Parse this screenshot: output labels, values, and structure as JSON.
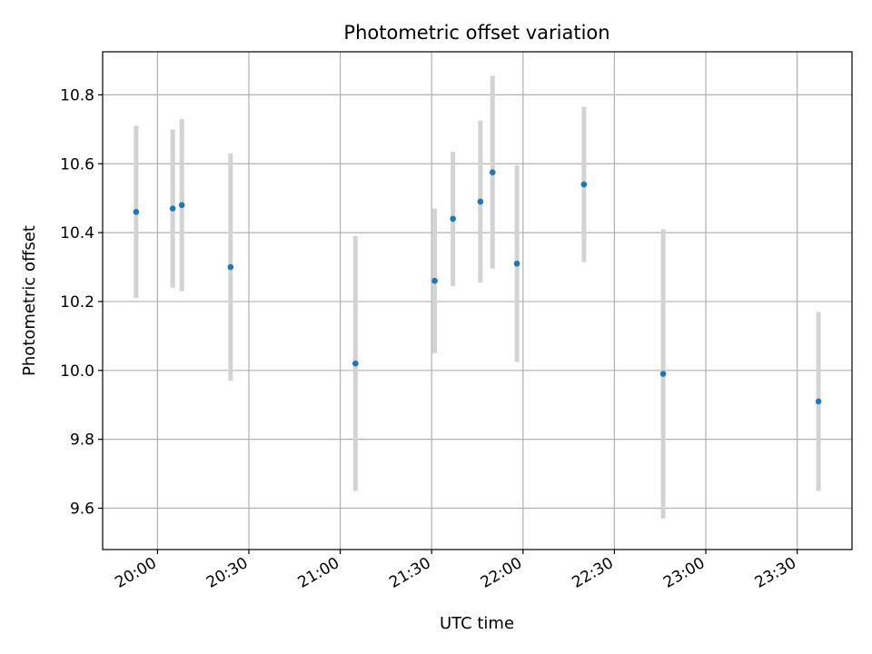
{
  "chart_data": {
    "type": "scatter",
    "title": "Photometric offset variation",
    "xlabel": "UTC time",
    "ylabel": "Photometric offset",
    "x_axis": {
      "type": "time",
      "range": [
        "19:42",
        "23:48"
      ],
      "ticks": [
        "20:00",
        "20:30",
        "21:00",
        "21:30",
        "22:00",
        "22:30",
        "23:00",
        "23:30"
      ]
    },
    "ylim": [
      9.48,
      10.925
    ],
    "y_ticks": [
      "9.6",
      "9.8",
      "10.0",
      "10.2",
      "10.4",
      "10.6",
      "10.8"
    ],
    "grid": true,
    "colors": {
      "marker": "#1f77b4",
      "errorbar": "#d3d3d3",
      "grid": "#b0b0b0"
    },
    "series": [
      {
        "points": [
          {
            "x": "19:53",
            "y": 10.46,
            "err": 0.25
          },
          {
            "x": "20:05",
            "y": 10.47,
            "err": 0.23
          },
          {
            "x": "20:08",
            "y": 10.48,
            "err": 0.25
          },
          {
            "x": "20:24",
            "y": 10.3,
            "err": 0.33
          },
          {
            "x": "21:05",
            "y": 10.02,
            "err": 0.37
          },
          {
            "x": "21:31",
            "y": 10.26,
            "err": 0.21
          },
          {
            "x": "21:37",
            "y": 10.44,
            "err": 0.195
          },
          {
            "x": "21:46",
            "y": 10.49,
            "err": 0.235
          },
          {
            "x": "21:50",
            "y": 10.575,
            "err": 0.28
          },
          {
            "x": "21:58",
            "y": 10.31,
            "err": 0.285
          },
          {
            "x": "22:20",
            "y": 10.54,
            "err": 0.225
          },
          {
            "x": "22:46",
            "y": 9.99,
            "err": 0.42
          },
          {
            "x": "23:37",
            "y": 9.91,
            "err": 0.26
          }
        ]
      }
    ]
  }
}
